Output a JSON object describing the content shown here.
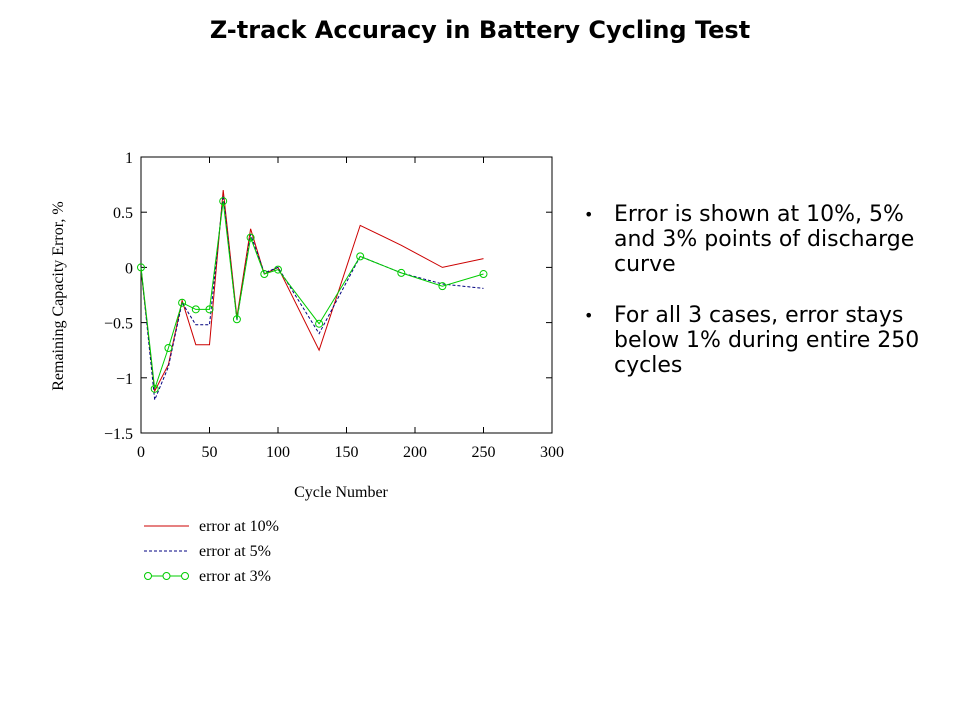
{
  "slide": {
    "title": "Z-track Accuracy in Battery Cycling Test",
    "bullets": [
      "Error is shown at 10%, 5% and 3% points of discharge curve",
      "For all 3 cases, error stays below 1% during entire 250 cycles"
    ]
  },
  "chart_data": {
    "type": "line",
    "title": "",
    "xlabel": "Cycle Number",
    "ylabel": "Remaining Capacity Error, %",
    "xlim": [
      0,
      300
    ],
    "ylim": [
      -1.5,
      1
    ],
    "xticks": [
      "0",
      "50",
      "100",
      "150",
      "200",
      "250",
      "300"
    ],
    "yticks": [
      "1",
      "0.5",
      "0",
      "−0.5",
      "−1",
      "−1.5"
    ],
    "xtick_values": [
      0,
      50,
      100,
      150,
      200,
      250,
      300
    ],
    "ytick_values": [
      1,
      0.5,
      0,
      -0.5,
      -1,
      -1.5
    ],
    "grid": false,
    "legend_position": "bottom-left",
    "series": [
      {
        "name": "error at 10%",
        "color": "#cc0000",
        "style": "solid",
        "x": [
          0,
          10,
          20,
          30,
          40,
          50,
          60,
          70,
          80,
          90,
          100,
          130,
          160,
          190,
          220,
          250
        ],
        "y": [
          -0.02,
          -1.12,
          -0.88,
          -0.3,
          -0.7,
          -0.7,
          0.7,
          -0.45,
          0.35,
          -0.06,
          0.0,
          -0.75,
          0.38,
          0.2,
          0.0,
          0.08
        ]
      },
      {
        "name": "error at 5%",
        "color": "#000080",
        "style": "dashed",
        "x": [
          0,
          10,
          20,
          30,
          40,
          50,
          60,
          70,
          80,
          90,
          100,
          130,
          160,
          190,
          220,
          250
        ],
        "y": [
          0.0,
          -1.2,
          -0.9,
          -0.32,
          -0.52,
          -0.52,
          0.65,
          -0.48,
          0.3,
          -0.05,
          0.0,
          -0.6,
          0.1,
          -0.05,
          -0.15,
          -0.19
        ]
      },
      {
        "name": "error at 3%",
        "color": "#00cc00",
        "style": "solid-with-circle-markers",
        "x": [
          0,
          10,
          20,
          30,
          40,
          50,
          60,
          70,
          80,
          90,
          100,
          130,
          160,
          190,
          220,
          250
        ],
        "y": [
          0.0,
          -1.1,
          -0.73,
          -0.32,
          -0.38,
          -0.38,
          0.6,
          -0.47,
          0.27,
          -0.06,
          -0.02,
          -0.51,
          0.1,
          -0.05,
          -0.17,
          -0.06
        ]
      }
    ]
  }
}
